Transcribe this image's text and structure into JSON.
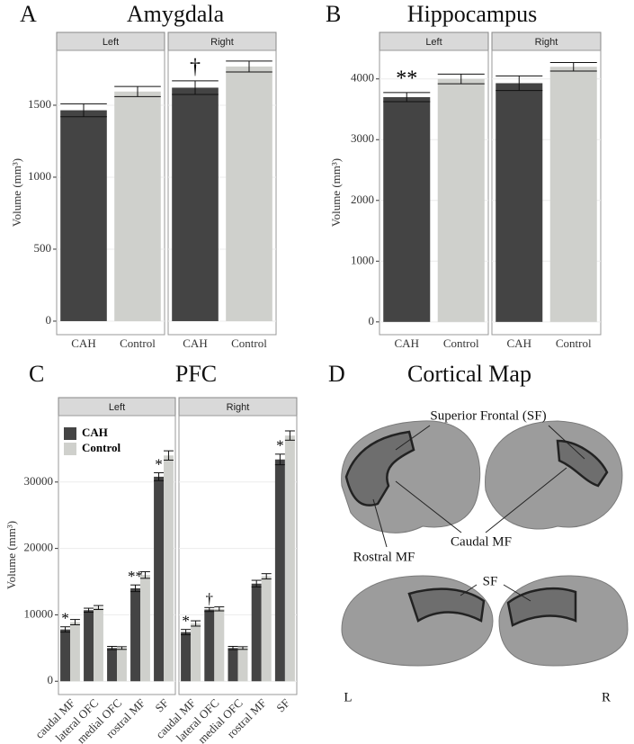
{
  "chart_data": [
    {
      "type": "bar",
      "panel_label": "A",
      "title": "Amygdala",
      "ylabel": "Volume (mm³)",
      "categories": [
        "CAH",
        "Control"
      ],
      "colors": [
        "#444444",
        "#cfd0cc"
      ],
      "ylim": [
        -94,
        1881
      ],
      "yticks": [
        0,
        500,
        1000,
        1500
      ],
      "facets": [
        {
          "label": "Left",
          "values": [
            1465,
            1595
          ],
          "errors": [
            45,
            35
          ],
          "annotations": [
            null,
            null
          ]
        },
        {
          "label": "Right",
          "values": [
            1622,
            1769
          ],
          "errors": [
            47,
            38
          ],
          "annotations": [
            "†",
            null
          ]
        }
      ]
    },
    {
      "type": "bar",
      "panel_label": "B",
      "title": "Hippocampus",
      "ylabel": "Volume (mm³)",
      "categories": [
        "CAH",
        "Control"
      ],
      "colors": [
        "#444444",
        "#cfd0cc"
      ],
      "ylim": [
        -210,
        4470
      ],
      "yticks": [
        0,
        1000,
        2000,
        3000,
        4000
      ],
      "facets": [
        {
          "label": "Left",
          "values": [
            3700,
            4000
          ],
          "errors": [
            75,
            80
          ],
          "annotations": [
            "**",
            null
          ]
        },
        {
          "label": "Right",
          "values": [
            3930,
            4200
          ],
          "errors": [
            120,
            70
          ],
          "annotations": [
            null,
            null
          ]
        }
      ]
    },
    {
      "type": "grouped_bar",
      "panel_label": "C",
      "title": "PFC",
      "ylabel": "Volume (mm³)",
      "categories": [
        "caudal MF",
        "lateral OFC",
        "medial OFC",
        "rostral MF",
        "SF"
      ],
      "legend": [
        {
          "name": "CAH",
          "color": "#444444"
        },
        {
          "name": "Control",
          "color": "#cfd0cc"
        }
      ],
      "ylim": [
        -2000,
        40000
      ],
      "yticks": [
        0,
        10000,
        20000,
        30000
      ],
      "facets": [
        {
          "label": "Left",
          "series": [
            {
              "values": [
                7800,
                10700,
                5000,
                14000,
                30800
              ],
              "errors": [
                400,
                300,
                250,
                500,
                600
              ],
              "annotations": [
                "*",
                null,
                null,
                "**",
                "*"
              ]
            },
            {
              "values": [
                8900,
                11100,
                5000,
                16000,
                34000
              ],
              "errors": [
                400,
                300,
                200,
                500,
                700
              ],
              "annotations": [
                null,
                null,
                null,
                null,
                null
              ]
            }
          ]
        },
        {
          "label": "Right",
          "series": [
            {
              "values": [
                7400,
                10800,
                5000,
                14700,
                33400
              ],
              "errors": [
                400,
                300,
                250,
                500,
                800
              ],
              "annotations": [
                "*",
                "†",
                null,
                null,
                "*"
              ]
            },
            {
              "values": [
                8700,
                10900,
                5000,
                15800,
                37000
              ],
              "errors": [
                400,
                300,
                200,
                400,
                700
              ],
              "annotations": [
                null,
                null,
                null,
                null,
                null
              ]
            }
          ]
        }
      ]
    }
  ],
  "figure": {
    "panel_label": "D",
    "title": "Cortical  Map",
    "labels": {
      "superior": "Superior Frontal (SF)",
      "caudal": "Caudal MF",
      "rostral": "Rostral MF",
      "sf": "SF",
      "left": "L",
      "right": "R"
    }
  }
}
